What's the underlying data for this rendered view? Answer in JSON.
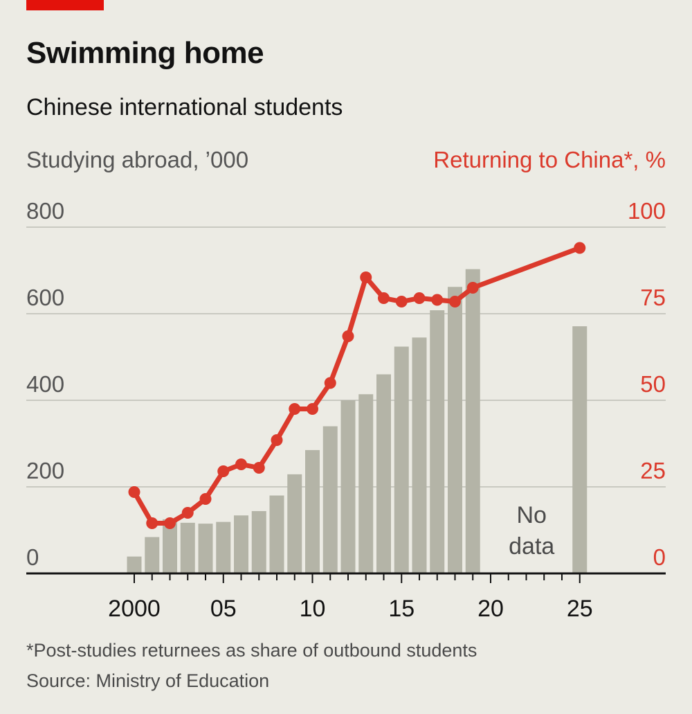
{
  "title": "Swimming home",
  "subtitle": "Chinese international students",
  "footnote": "*Post-studies returnees as share of outbound students",
  "source": "Source: Ministry of Education",
  "colors": {
    "accent": "#e3120b",
    "line": "#db3a2c",
    "bars": "#b4b4a7",
    "grid": "#c9c9c1",
    "axis": "#121212",
    "background": "#ecebe4"
  },
  "chart_data": {
    "type": "bar+line",
    "left_axis": {
      "label": "Studying abroad, ’000",
      "ticks": [
        "0",
        "200",
        "400",
        "600",
        "800"
      ],
      "ylim": [
        0,
        800
      ]
    },
    "right_axis": {
      "label": "Returning to China*, %",
      "ticks": [
        "0",
        "25",
        "50",
        "75",
        "100"
      ],
      "ylim": [
        0,
        100
      ]
    },
    "x_ticks": [
      "2000",
      "05",
      "10",
      "15",
      "20",
      "25"
    ],
    "xlim": [
      1994,
      2030
    ],
    "grid": true,
    "annotation": "No data",
    "bars": {
      "years": [
        2000,
        2001,
        2002,
        2003,
        2004,
        2005,
        2006,
        2007,
        2008,
        2009,
        2010,
        2011,
        2012,
        2013,
        2014,
        2015,
        2016,
        2017,
        2018,
        2019,
        2025
      ],
      "values": [
        39,
        84,
        125,
        117,
        115,
        119,
        134,
        144,
        180,
        229,
        285,
        340,
        400,
        414,
        460,
        524,
        545,
        608,
        662,
        703,
        571
      ]
    },
    "line": {
      "years": [
        2000,
        2001,
        2002,
        2003,
        2004,
        2005,
        2006,
        2007,
        2008,
        2009,
        2010,
        2011,
        2012,
        2013,
        2014,
        2015,
        2016,
        2017,
        2018,
        2019,
        2025
      ],
      "values": [
        23.5,
        14.5,
        14.5,
        17.5,
        21.5,
        29.5,
        31.5,
        30.5,
        38.5,
        47.5,
        47.5,
        55,
        68.5,
        85.5,
        79.5,
        78.5,
        79.5,
        79,
        78.5,
        82.5,
        94
      ]
    }
  }
}
